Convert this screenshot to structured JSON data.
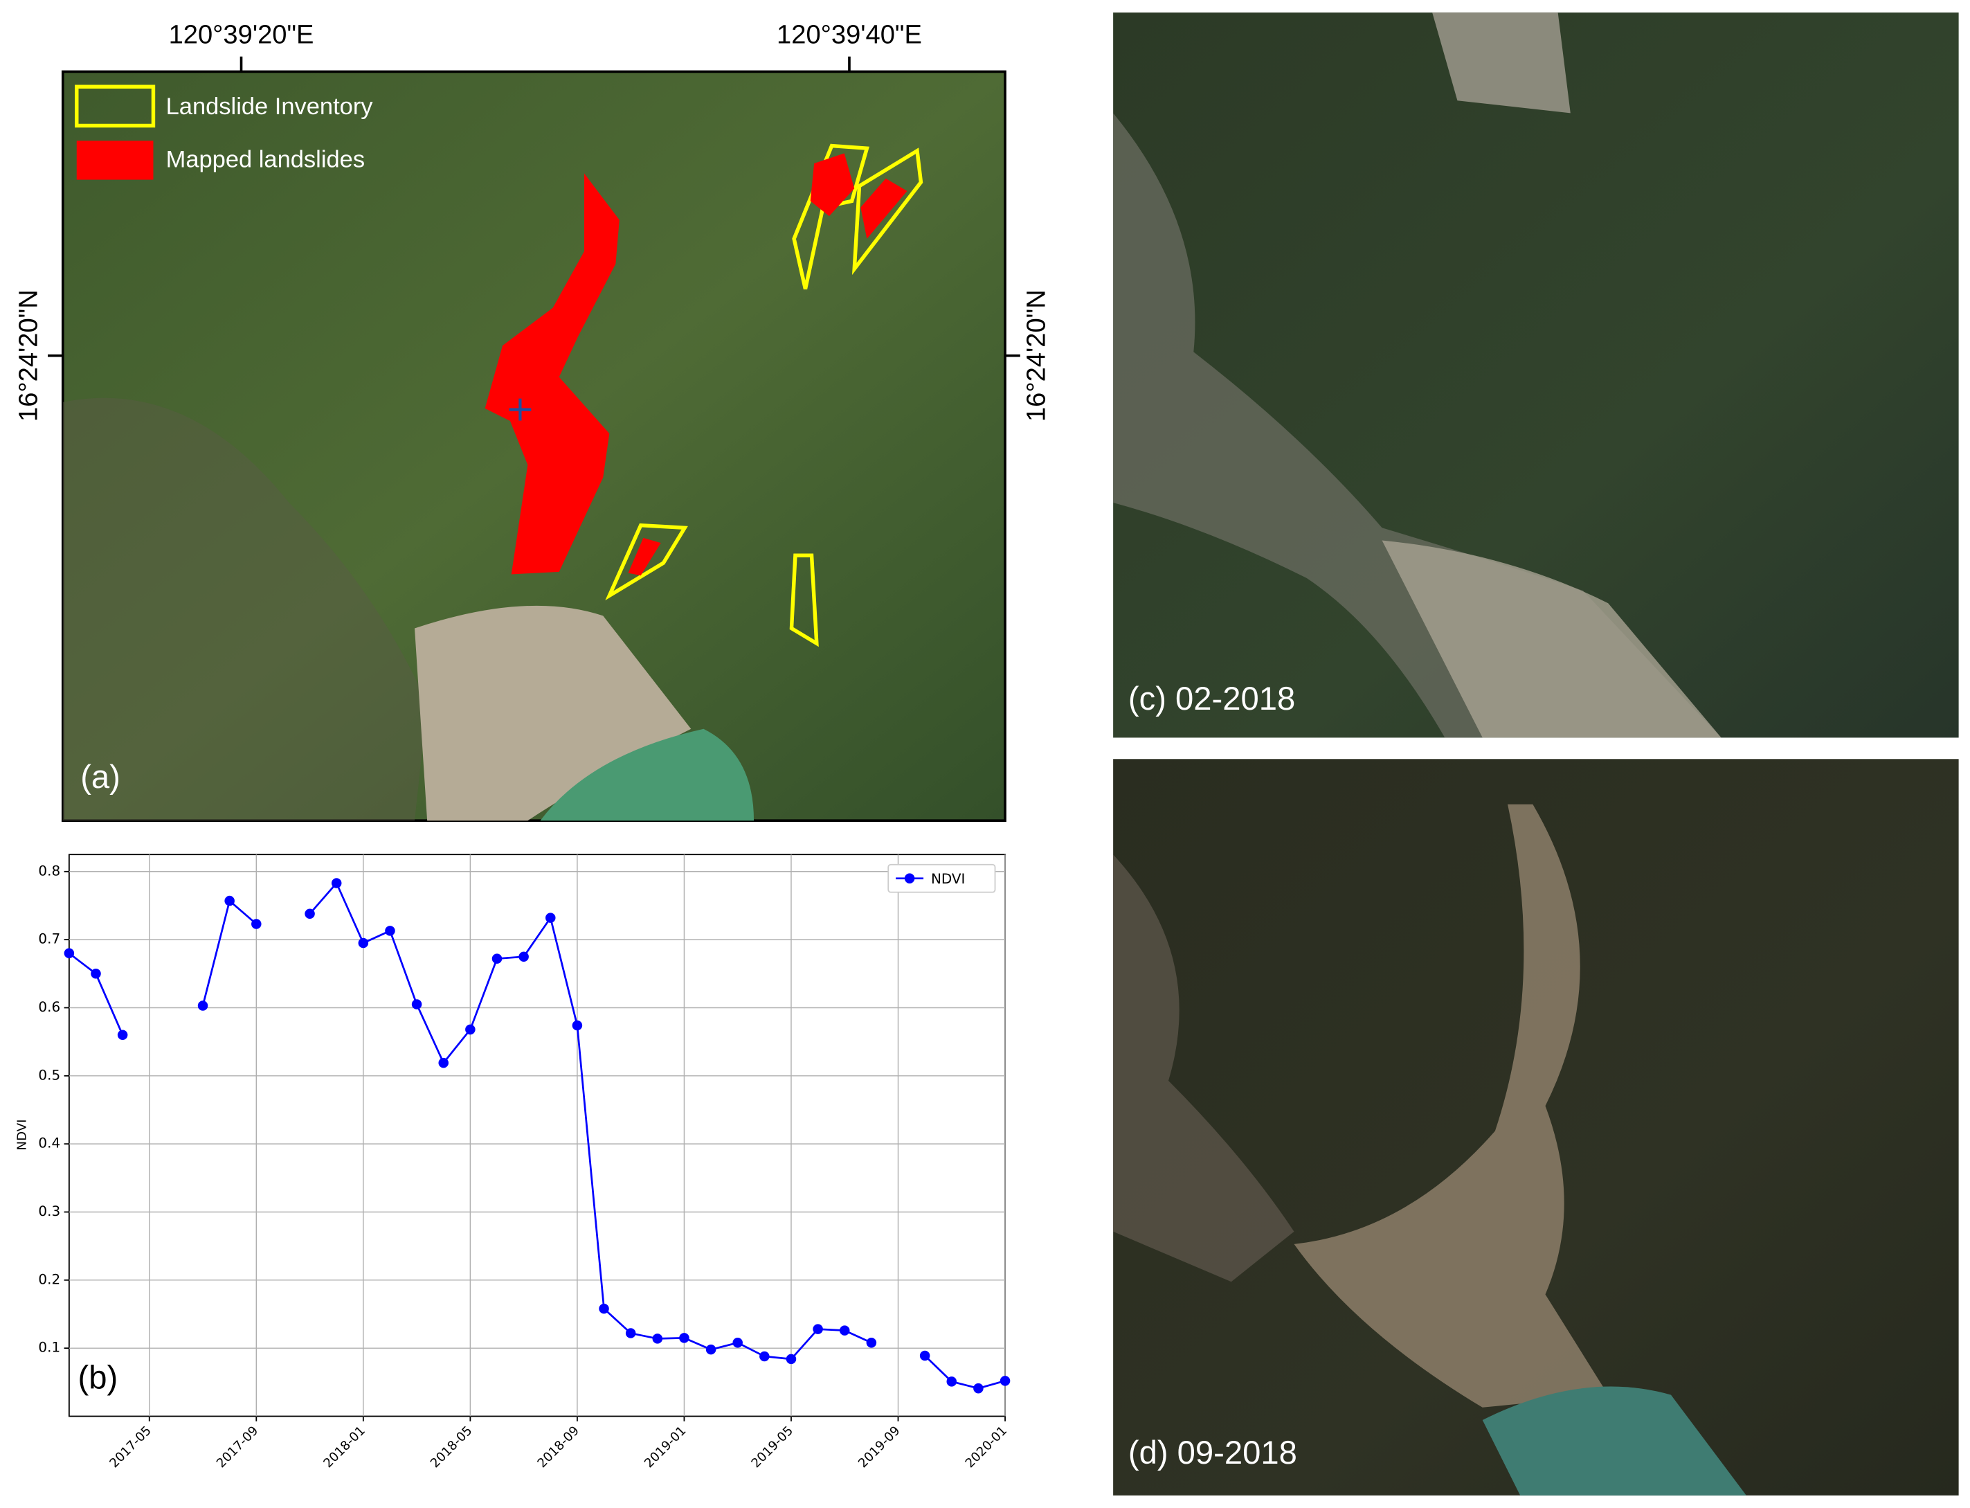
{
  "panel_a": {
    "label": "(a)",
    "lon_ticks": [
      "120°39'20\"E",
      "120°39'40\"E"
    ],
    "lat_left": "16°24'20\"N",
    "lat_right": "16°24'20\"N",
    "legend": [
      "Landslide Inventory",
      "Mapped landslides"
    ]
  },
  "panel_c": {
    "label": "(c) 02-2018"
  },
  "panel_d": {
    "label": "(d) 09-2018"
  },
  "chart_data": {
    "type": "line",
    "panel_label": "(b)",
    "y_label": "NDVI",
    "x": [
      "2017-02",
      "2017-03",
      "2017-04",
      "2017-05",
      "2017-06",
      "2017-07",
      "2017-08",
      "2017-09",
      "2017-10",
      "2017-11",
      "2017-12",
      "2018-01",
      "2018-02",
      "2018-03",
      "2018-04",
      "2018-05",
      "2018-06",
      "2018-07",
      "2018-08",
      "2018-09",
      "2018-10",
      "2018-11",
      "2018-12",
      "2019-01",
      "2019-02",
      "2019-03",
      "2019-04",
      "2019-05",
      "2019-06",
      "2019-07",
      "2019-08",
      "2019-09",
      "2019-10",
      "2019-11",
      "2019-12",
      "2020-01"
    ],
    "series": [
      {
        "name": "NDVI",
        "color": "#0000ff",
        "values": [
          0.68,
          0.65,
          0.56,
          null,
          null,
          0.603,
          0.757,
          0.723,
          null,
          0.738,
          0.783,
          0.695,
          0.713,
          0.605,
          0.519,
          0.568,
          0.672,
          0.675,
          0.732,
          0.574,
          0.158,
          0.122,
          0.114,
          0.115,
          0.098,
          0.108,
          0.088,
          0.084,
          0.128,
          0.126,
          0.108,
          null,
          0.089,
          0.051,
          0.041,
          0.052
        ]
      }
    ],
    "xlim": [
      "2017-02",
      "2020-01"
    ],
    "xticks": [
      "2017-05",
      "2017-09",
      "2018-01",
      "2018-05",
      "2018-09",
      "2019-01",
      "2019-05",
      "2019-09",
      "2020-01"
    ],
    "ylim": [
      0.0,
      0.825
    ],
    "yticks": [
      0.1,
      0.2,
      0.3,
      0.4,
      0.5,
      0.6,
      0.7,
      0.8
    ],
    "grid": true,
    "legend": "upper right"
  }
}
